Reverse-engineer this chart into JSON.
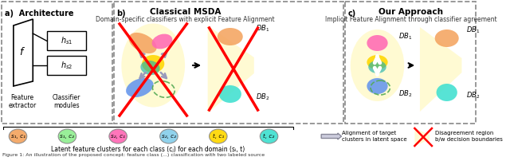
{
  "fig_width": 6.4,
  "fig_height": 2.02,
  "dpi": 100,
  "bg_color": "#ffffff",
  "section_a_title": "a)  Architecture",
  "section_b_title": "b)",
  "section_b_subtitle1": "Classical MSDA",
  "section_b_subtitle2": "Domain-specific classifiers with explicit Feature Alignment",
  "section_c_title": "c)",
  "section_c_subtitle1": "Our Approach",
  "section_c_subtitle2": "Implicit Feature Alignment through classifier agreement",
  "legend_items": [
    {
      "label": "s₁, c₁",
      "color": "#f4a460"
    },
    {
      "label": "s₁, c₂",
      "color": "#90ee90"
    },
    {
      "label": "s₂, c₁",
      "color": "#ff69b4"
    },
    {
      "label": "s₂, c₂",
      "color": "#87ceeb"
    },
    {
      "label": "t, c₁",
      "color": "#ffd700"
    },
    {
      "label": "t, c₂",
      "color": "#40e0d0"
    }
  ],
  "legend_text": "Latent feature clusters for each class (cⱼ) for each domain (sᵢ, t)",
  "align_label": "Alignment of target\nclusters in latent space",
  "disagree_label": "Disagreement region\nb/w decision boundaries",
  "colors": {
    "orange_blob": "#f4a460",
    "pink_blob": "#ff69b4",
    "yellow_blob": "#ffd700",
    "teal_blob": "#40e0d0",
    "blue_blob": "#6495ed",
    "green_blob": "#90ee90",
    "red_cross": "#ff0000",
    "box_bg": "#fff8dc"
  }
}
